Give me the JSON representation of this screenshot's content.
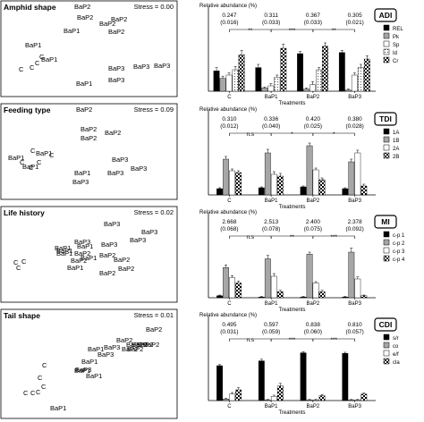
{
  "nmds": [
    {
      "title": "Amphid shape",
      "stress_label": "Stress = 0.00",
      "points": [
        {
          "label": "BaP2",
          "x": 82,
          "y": 9
        },
        {
          "label": "BaP2",
          "x": 85,
          "y": 21
        },
        {
          "label": "BaP2",
          "x": 123,
          "y": 23
        },
        {
          "label": "BaP2",
          "x": 110,
          "y": 28
        },
        {
          "label": "BaP2",
          "x": 120,
          "y": 37
        },
        {
          "label": "BaP1",
          "x": 27,
          "y": 52
        },
        {
          "label": "BaP1",
          "x": 70,
          "y": 36
        },
        {
          "label": "BaP1",
          "x": 45,
          "y": 68
        },
        {
          "label": "BaP1",
          "x": 84,
          "y": 95
        },
        {
          "label": "BaP3",
          "x": 120,
          "y": 78
        },
        {
          "label": "BaP3",
          "x": 148,
          "y": 76
        },
        {
          "label": "BaP3",
          "x": 171,
          "y": 75
        },
        {
          "label": "BaP3",
          "x": 120,
          "y": 91
        },
        {
          "label": "C",
          "x": 43,
          "y": 65
        },
        {
          "label": "C",
          "x": 38,
          "y": 72
        },
        {
          "label": "C",
          "x": 32,
          "y": 77
        },
        {
          "label": "C",
          "x": 20,
          "y": 79
        }
      ]
    },
    {
      "title": "Feeding type",
      "stress_label": "Stress = 0.09",
      "points": [
        {
          "label": "BaP2",
          "x": 84,
          "y": 9
        },
        {
          "label": "BaP2",
          "x": 89,
          "y": 31
        },
        {
          "label": "BaP2",
          "x": 89,
          "y": 41
        },
        {
          "label": "BaP2",
          "x": 116,
          "y": 35
        },
        {
          "label": "BaP1",
          "x": 8,
          "y": 63
        },
        {
          "label": "BaP1",
          "x": 39,
          "y": 58
        },
        {
          "label": "BaP1",
          "x": 82,
          "y": 80
        },
        {
          "label": "BaP1",
          "x": 24,
          "y": 73
        },
        {
          "label": "BaP3",
          "x": 124,
          "y": 65
        },
        {
          "label": "BaP3",
          "x": 145,
          "y": 75
        },
        {
          "label": "BaP3",
          "x": 119,
          "y": 80
        },
        {
          "label": "BaP3",
          "x": 80,
          "y": 90
        },
        {
          "label": "C",
          "x": 33,
          "y": 55
        },
        {
          "label": "C",
          "x": 54,
          "y": 60
        },
        {
          "label": "C",
          "x": 40,
          "y": 68
        },
        {
          "label": "C",
          "x": 21,
          "y": 68
        },
        {
          "label": "C",
          "x": 31,
          "y": 74
        }
      ]
    },
    {
      "title": "Life history",
      "stress_label": "Stress = 0.02",
      "points": [
        {
          "label": "BaP3",
          "x": 115,
          "y": 22
        },
        {
          "label": "BaP3",
          "x": 157,
          "y": 31
        },
        {
          "label": "BaP3",
          "x": 144,
          "y": 40
        },
        {
          "label": "BaP3",
          "x": 82,
          "y": 42
        },
        {
          "label": "BaP3",
          "x": 112,
          "y": 45
        },
        {
          "label": "BaP1",
          "x": 85,
          "y": 47
        },
        {
          "label": "BaP1",
          "x": 60,
          "y": 49
        },
        {
          "label": "BaP1",
          "x": 62,
          "y": 52
        },
        {
          "label": "BaP1",
          "x": 62,
          "y": 55
        },
        {
          "label": "BaP1",
          "x": 89,
          "y": 60
        },
        {
          "label": "BaP1",
          "x": 74,
          "y": 71
        },
        {
          "label": "BaP2",
          "x": 82,
          "y": 55
        },
        {
          "label": "BaP2",
          "x": 110,
          "y": 57
        },
        {
          "label": "BaP2",
          "x": 78,
          "y": 63
        },
        {
          "label": "BaP2",
          "x": 126,
          "y": 62
        },
        {
          "label": "BaP2",
          "x": 131,
          "y": 72
        },
        {
          "label": "BaP2",
          "x": 110,
          "y": 77
        },
        {
          "label": "C",
          "x": 14,
          "y": 65
        },
        {
          "label": "C",
          "x": 23,
          "y": 64
        },
        {
          "label": "C",
          "x": 17,
          "y": 71
        }
      ]
    },
    {
      "title": "Tail shape",
      "stress_label": "Stress = 0.01",
      "points": [
        {
          "label": "BaP2",
          "x": 162,
          "y": 25
        },
        {
          "label": "BaP2",
          "x": 129,
          "y": 37
        },
        {
          "label": "BaP2",
          "x": 140,
          "y": 42
        },
        {
          "label": "BaP2",
          "x": 146,
          "y": 42
        },
        {
          "label": "BaP2",
          "x": 152,
          "y": 42
        },
        {
          "label": "BaP2",
          "x": 159,
          "y": 42
        },
        {
          "label": "BaP2",
          "x": 135,
          "y": 47
        },
        {
          "label": "BaP2",
          "x": 141,
          "y": 47
        },
        {
          "label": "BaP3",
          "x": 115,
          "y": 45
        },
        {
          "label": "BaP3",
          "x": 108,
          "y": 53
        },
        {
          "label": "BaP3",
          "x": 83,
          "y": 70
        },
        {
          "label": "BaP1",
          "x": 97,
          "y": 47
        },
        {
          "label": "BaP1",
          "x": 90,
          "y": 61
        },
        {
          "label": "BaP1",
          "x": 82,
          "y": 71
        },
        {
          "label": "BaP1",
          "x": 95,
          "y": 77
        },
        {
          "label": "BaP1",
          "x": 55,
          "y": 113
        },
        {
          "label": "C",
          "x": 46,
          "y": 65
        },
        {
          "label": "C",
          "x": 41,
          "y": 79
        },
        {
          "label": "C",
          "x": 45,
          "y": 89
        },
        {
          "label": "C",
          "x": 39,
          "y": 95
        },
        {
          "label": "C",
          "x": 33,
          "y": 96
        },
        {
          "label": "C",
          "x": 25,
          "y": 96
        }
      ]
    }
  ],
  "chart_data": [
    {
      "type": "bar",
      "title": "ADI",
      "ylabel": "Relative abundance (%)",
      "xlabel": "Treatments",
      "categories": [
        "C",
        "BaP1",
        "BaP2",
        "BaP3"
      ],
      "ylim": [
        0,
        50
      ],
      "top_values": [
        "0.247",
        "0.311",
        "0.367",
        "0.305"
      ],
      "top_parens": [
        "(0.016)",
        "(0.033)",
        "(0.033)",
        "(0.021)"
      ],
      "significance": [
        {
          "label": "**",
          "from": 1,
          "to": 2
        },
        {
          "label": "***",
          "from": 2,
          "to": 3
        },
        {
          "label": "**",
          "from": 3,
          "to": 4
        }
      ],
      "series": [
        {
          "name": "REL",
          "values": [
            19,
            22,
            35,
            36
          ],
          "errors": [
            3,
            3,
            2,
            2
          ]
        },
        {
          "name": "Pk",
          "values": [
            12,
            3,
            2,
            1
          ],
          "errors": [
            2,
            1,
            1,
            1
          ]
        },
        {
          "name": "Sp",
          "values": [
            15,
            5,
            6,
            15
          ],
          "errors": [
            2,
            2,
            3,
            2
          ]
        },
        {
          "name": "Id",
          "values": [
            20,
            13,
            20,
            22
          ],
          "errors": [
            3,
            2,
            2,
            3
          ]
        },
        {
          "name": "Cr",
          "values": [
            34,
            40,
            42,
            30
          ],
          "errors": [
            4,
            4,
            3,
            3
          ]
        }
      ]
    },
    {
      "type": "bar",
      "title": "TDI",
      "ylabel": "Relative abundance (%)",
      "xlabel": "Treatments",
      "categories": [
        "C",
        "BaP1",
        "BaP2",
        "BaP3"
      ],
      "ylim": [
        0,
        60
      ],
      "top_values": [
        "0.310",
        "0.336",
        "0.420",
        "0.380"
      ],
      "top_parens": [
        "(0.012)",
        "(0.040)",
        "(0.025)",
        "(0.028)"
      ],
      "significance": [
        {
          "label": "n.s",
          "from": 1,
          "to": 2
        },
        {
          "label": "*",
          "from": 2,
          "to": 3
        },
        {
          "label": "*",
          "from": 3,
          "to": 4
        }
      ],
      "series": [
        {
          "name": "1A",
          "values": [
            7,
            8,
            9,
            7
          ],
          "errors": [
            1,
            1,
            1,
            1
          ]
        },
        {
          "name": "1B",
          "values": [
            40,
            47,
            55,
            37
          ],
          "errors": [
            3,
            4,
            3,
            3
          ]
        },
        {
          "name": "2A",
          "values": [
            27,
            23,
            28,
            47
          ],
          "errors": [
            2,
            3,
            2,
            3
          ]
        },
        {
          "name": "2B",
          "values": [
            25,
            21,
            17,
            10
          ],
          "errors": [
            2,
            3,
            2,
            2
          ]
        }
      ]
    },
    {
      "type": "bar",
      "title": "MI",
      "ylabel": "Relative abundance (%)",
      "xlabel": "Treatments",
      "categories": [
        "C",
        "BaP1",
        "BaP2",
        "BaP3"
      ],
      "ylim": [
        0,
        80
      ],
      "top_values": [
        "2.668",
        "2.513",
        "2.400",
        "2.378"
      ],
      "top_parens": [
        "(0.068)",
        "(0.078)",
        "(0.075)",
        "(0.092)"
      ],
      "significance": [
        {
          "label": "n.s",
          "from": 1,
          "to": 2
        },
        {
          "label": "**",
          "from": 2,
          "to": 3
        },
        {
          "label": "***",
          "from": 3,
          "to": 4
        }
      ],
      "series": [
        {
          "name": "c-p 1",
          "values": [
            3,
            1,
            1,
            1
          ],
          "errors": [
            1,
            1,
            1,
            1
          ]
        },
        {
          "name": "c-p 2",
          "values": [
            45,
            58,
            65,
            68
          ],
          "errors": [
            4,
            5,
            3,
            6
          ]
        },
        {
          "name": "c-p 3",
          "values": [
            30,
            32,
            22,
            28
          ],
          "errors": [
            3,
            4,
            2,
            3
          ]
        },
        {
          "name": "c-p 4",
          "values": [
            22,
            9,
            9,
            3
          ],
          "errors": [
            3,
            2,
            2,
            1
          ]
        }
      ]
    },
    {
      "type": "bar",
      "title": "CDI",
      "ylabel": "Relative abundance (%)",
      "xlabel": "Treatments",
      "categories": [
        "C",
        "BaP1",
        "BaP2",
        "BaP3"
      ],
      "ylim": [
        0,
        100
      ],
      "top_values": [
        "0.495",
        "0.597",
        "0.838",
        "0.810"
      ],
      "top_parens": [
        "(0.031)",
        "(0.059)",
        "(0.060)",
        "(0.057)"
      ],
      "significance": [
        {
          "label": "n.s",
          "from": 1,
          "to": 2
        },
        {
          "label": "***",
          "from": 2,
          "to": 3
        },
        {
          "label": "***",
          "from": 3,
          "to": 4
        }
      ],
      "series": [
        {
          "name": "s/r",
          "values": [
            65,
            74,
            89,
            88
          ],
          "errors": [
            2,
            3,
            2,
            2
          ]
        },
        {
          "name": "co",
          "values": [
            3,
            1,
            1,
            1
          ],
          "errors": [
            1,
            1,
            1,
            1
          ]
        },
        {
          "name": "e/f",
          "values": [
            12,
            8,
            1,
            1
          ],
          "errors": [
            3,
            2,
            1,
            1
          ]
        },
        {
          "name": "cla",
          "values": [
            20,
            27,
            9,
            12
          ],
          "errors": [
            4,
            5,
            2,
            2
          ]
        }
      ]
    }
  ]
}
